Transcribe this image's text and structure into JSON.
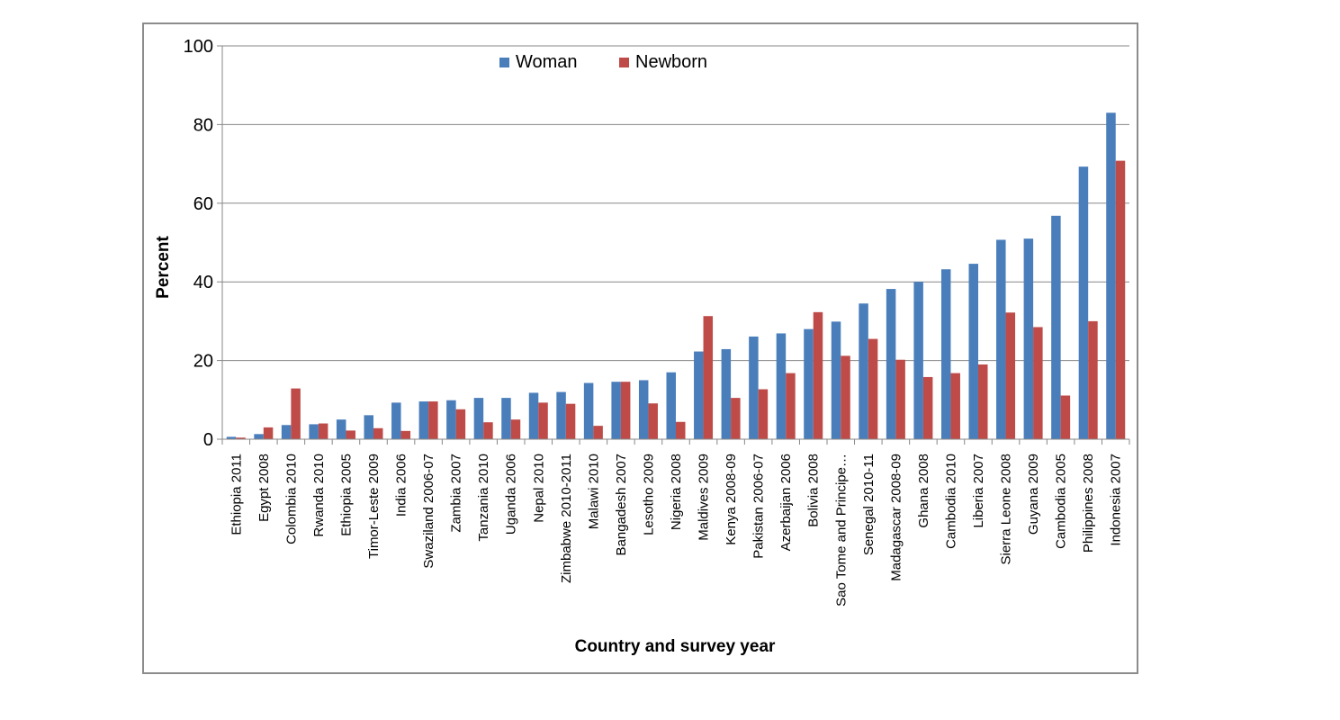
{
  "chart_data": {
    "type": "bar",
    "title": "",
    "xlabel": "Country and survey year",
    "ylabel": "Percent",
    "ylim": [
      0,
      100
    ],
    "yticks": [
      0,
      20,
      40,
      60,
      80,
      100
    ],
    "grid": true,
    "legend_position": "top-center",
    "categories": [
      "Ethiopia 2011",
      "Egypt 2008",
      "Colombia 2010",
      "Rwanda 2010",
      "Ethiopia 2005",
      "Timor-Leste 2009",
      "India 2006",
      "Swaziland 2006-07",
      "Zambia 2007",
      "Tanzania 2010",
      "Uganda 2006",
      "Nepal 2010",
      "Zimbabwe 2010-2011",
      "Malawi 2010",
      "Bangadesh 2007",
      "Lesotho 2009",
      "Nigeria 2008",
      "Maldives 2009",
      "Kenya 2008-09",
      "Pakistan 2006-07",
      "Azerbaijan 2006",
      "Bolivia 2008",
      "Sao Tome and Principe…",
      "Senegal 2010-11",
      "Madagascar 2008-09",
      "Ghana 2008",
      "Cambodia 2010",
      "Liberia 2007",
      "Sierra Leone 2008",
      "Guyana 2009",
      "Cambodia 2005",
      "Philippines 2008",
      "Indonesia 2007"
    ],
    "series": [
      {
        "name": "Woman",
        "color": "#4a7ebb",
        "values": [
          0.6,
          1.3,
          3.6,
          3.8,
          5.0,
          6.1,
          9.3,
          9.6,
          9.9,
          10.5,
          10.5,
          11.8,
          12.0,
          14.3,
          14.6,
          15.0,
          17.0,
          22.3,
          22.9,
          26.1,
          26.9,
          28.0,
          29.9,
          34.5,
          38.2,
          40.0,
          43.2,
          44.6,
          50.7,
          51.0,
          56.8,
          69.3,
          83.0
        ]
      },
      {
        "name": "Newborn",
        "color": "#be4b48",
        "values": [
          0.4,
          3.0,
          12.9,
          4.0,
          2.2,
          2.8,
          2.1,
          9.6,
          7.6,
          4.3,
          5.0,
          9.3,
          9.0,
          3.4,
          14.6,
          9.1,
          4.4,
          31.3,
          10.5,
          12.7,
          16.8,
          32.3,
          21.2,
          25.5,
          20.2,
          15.8,
          16.8,
          19.0,
          32.2,
          28.5,
          11.1,
          30.0,
          70.8
        ]
      }
    ]
  }
}
